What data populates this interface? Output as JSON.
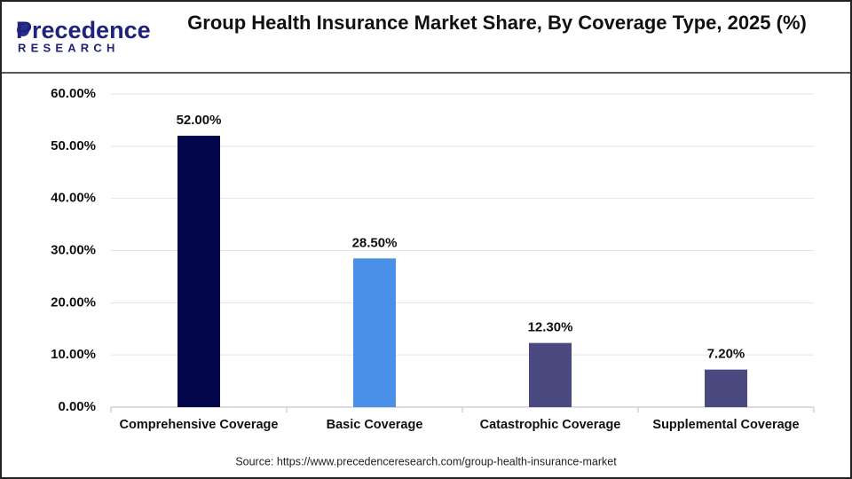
{
  "logo": {
    "name": "Precedence",
    "tagline": "RESEARCH"
  },
  "chart_data": {
    "type": "bar",
    "title": "Group Health Insurance Market Share, By Coverage Type, 2025 (%)",
    "categories": [
      "Comprehensive Coverage",
      "Basic Coverage",
      "Catastrophic Coverage",
      "Supplemental Coverage"
    ],
    "values": [
      52.0,
      28.5,
      12.3,
      7.2
    ],
    "value_labels": [
      "52.00%",
      "28.50%",
      "12.30%",
      "7.20%"
    ],
    "colors": [
      "#03064a",
      "#4a90e8",
      "#4a4a80",
      "#4a4a80"
    ],
    "ylim": [
      0,
      60
    ],
    "yticks": [
      {
        "value": 0,
        "label": "0.00%"
      },
      {
        "value": 10,
        "label": "10.00%"
      },
      {
        "value": 20,
        "label": "20.00%"
      },
      {
        "value": 30,
        "label": "30.00%"
      },
      {
        "value": 40,
        "label": "40.00%"
      },
      {
        "value": 50,
        "label": "50.00%"
      },
      {
        "value": 60,
        "label": "60.00%"
      }
    ],
    "grid": true,
    "source": "Source: https://www.precedenceresearch.com/group-health-insurance-market"
  }
}
